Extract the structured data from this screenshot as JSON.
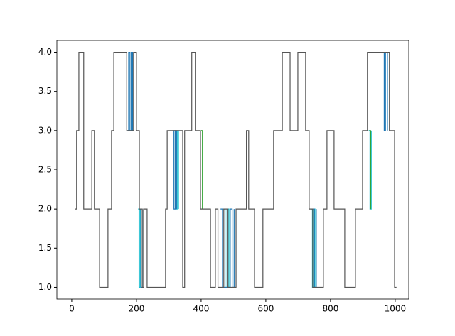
{
  "chart_data": {
    "type": "step",
    "xlim": [
      -46,
      1042
    ],
    "ylim": [
      0.85,
      4.15
    ],
    "xticks": [
      0,
      200,
      400,
      600,
      800,
      1000
    ],
    "yticks": [
      {
        "value": 1,
        "label": "1.0"
      },
      {
        "value": 1.5,
        "label": "1.5"
      },
      {
        "value": 2,
        "label": "2.0"
      },
      {
        "value": 2.5,
        "label": "2.5"
      },
      {
        "value": 3,
        "label": "3.0"
      },
      {
        "value": 3.5,
        "label": "3.5"
      },
      {
        "value": 4,
        "label": "4.0"
      }
    ],
    "series": [
      {
        "color": "#17becf",
        "x": [
          205,
          208,
          211,
          214,
          null,
          318,
          322,
          326,
          330,
          null,
          468,
          474,
          480,
          486,
          null,
          740,
          744,
          748,
          752,
          null,
          918,
          922,
          926
        ],
        "values": [
          2,
          1,
          2,
          1,
          null,
          3,
          2,
          3,
          2,
          null,
          2,
          1,
          2,
          1,
          null,
          2,
          1,
          2,
          1,
          null,
          3,
          2,
          3
        ]
      },
      {
        "color": "#1f77b4",
        "x": [
          172,
          176,
          180,
          184,
          188,
          null,
          210,
          214,
          218,
          null,
          312,
          316,
          320,
          324,
          null,
          460,
          466,
          490,
          496,
          502,
          null,
          746,
          750,
          756,
          null,
          962,
          966,
          970,
          976
        ],
        "values": [
          3,
          4,
          3,
          4,
          3,
          null,
          2,
          1,
          2,
          null,
          3,
          2,
          3,
          2,
          null,
          2,
          1,
          2,
          1,
          2,
          null,
          2,
          1,
          2,
          null,
          4,
          3,
          4,
          3
        ]
      },
      {
        "color": "#2ca02c",
        "x": [
          400,
          404,
          null,
          920,
          924
        ],
        "values": [
          3,
          2,
          null,
          3,
          2
        ]
      },
      {
        "color": "#555555",
        "x": [
          11,
          15,
          22,
          37,
          62,
          70,
          86,
          112,
          123,
          130,
          170,
          191,
          200,
          209,
          218,
          222,
          233,
          290,
          295,
          343,
          349,
          371,
          382,
          398,
          429,
          444,
          452,
          470,
          483,
          508,
          540,
          547,
          565,
          591,
          624,
          651,
          675,
          699,
          723,
          734,
          745,
          778,
          789,
          811,
          844,
          877,
          899,
          914,
          982,
          998,
          1004
        ],
        "values": [
          2,
          3,
          4,
          2,
          3,
          2,
          1,
          2,
          3,
          4,
          3,
          4,
          3,
          2,
          1,
          2,
          1,
          2,
          3,
          1,
          3,
          4,
          3,
          2,
          1,
          2,
          1,
          2,
          1,
          2,
          3,
          2,
          1,
          2,
          3,
          4,
          3,
          4,
          3,
          2,
          1,
          2,
          3,
          2,
          1,
          2,
          3,
          4,
          3,
          1,
          1
        ]
      }
    ]
  }
}
